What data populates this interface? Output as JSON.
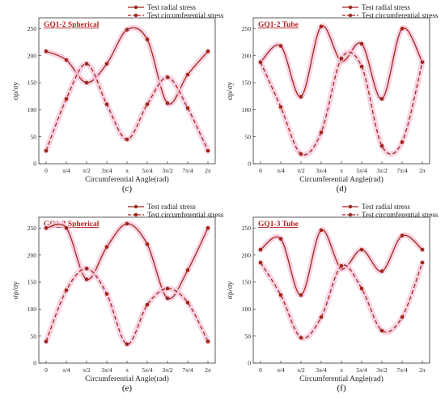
{
  "colors": {
    "series": "#a0261b",
    "halo": "#f6c9dd"
  },
  "chart_data": [
    {
      "panel": "c",
      "type": "line",
      "title": "GQ1-2 Spherical",
      "xlabel": "Circumferential Angle(rad)",
      "ylabel": "σρ/σy",
      "categories": [
        "0",
        "π/4",
        "π/2",
        "3π/4",
        "π",
        "5π/4",
        "3π/2",
        "7π/4",
        "2π"
      ],
      "ylim": [
        0,
        270
      ],
      "yticks": [
        0,
        50,
        100,
        150,
        200,
        250
      ],
      "legend_position": "top-right",
      "series": [
        {
          "name": "Test radial stress",
          "style": "solid",
          "values": [
            208,
            192,
            150,
            185,
            248,
            230,
            112,
            165,
            208
          ]
        },
        {
          "name": "Test circumferential stress",
          "style": "dashed",
          "values": [
            24,
            120,
            185,
            110,
            45,
            110,
            160,
            103,
            24
          ]
        }
      ]
    },
    {
      "panel": "d",
      "type": "line",
      "title": "GQ1-2 Tube",
      "xlabel": "Circumferential Angle(rad)",
      "ylabel": "σρ/σy",
      "categories": [
        "0",
        "π/4",
        "π/2",
        "3π/4",
        "π",
        "5π/4",
        "3π/2",
        "7π/4",
        "2π"
      ],
      "ylim": [
        0,
        270
      ],
      "yticks": [
        0,
        50,
        100,
        150,
        200,
        250
      ],
      "legend_position": "top-right",
      "series": [
        {
          "name": "Test radial stress",
          "style": "solid",
          "values": [
            188,
            218,
            124,
            254,
            190,
            222,
            120,
            250,
            188
          ]
        },
        {
          "name": "Test circumferential stress",
          "style": "dashed",
          "values": [
            188,
            105,
            18,
            58,
            195,
            180,
            33,
            40,
            188
          ]
        }
      ]
    },
    {
      "panel": "e",
      "type": "line",
      "title": "GQ1-3 Spherical",
      "xlabel": "Circumferential Angle(rad)",
      "ylabel": "σρ/σy",
      "categories": [
        "0",
        "π/4",
        "π/2",
        "3π/4",
        "π",
        "5π/4",
        "3π/2",
        "7π/4",
        "2π"
      ],
      "ylim": [
        0,
        270
      ],
      "yticks": [
        0,
        50,
        100,
        150,
        200,
        250
      ],
      "legend_position": "top-right",
      "series": [
        {
          "name": "Test radial stress",
          "style": "solid",
          "values": [
            250,
            250,
            155,
            215,
            258,
            220,
            120,
            172,
            250
          ]
        },
        {
          "name": "Test circumferential stress",
          "style": "dashed",
          "values": [
            40,
            135,
            175,
            128,
            35,
            108,
            138,
            112,
            40
          ]
        }
      ]
    },
    {
      "panel": "f",
      "type": "line",
      "title": "GQ1-3 Tube",
      "xlabel": "Circumferential Angle(rad)",
      "ylabel": "σρ/σy",
      "categories": [
        "0",
        "π/4",
        "π/2",
        "3π/4",
        "π",
        "5π/4",
        "3π/2",
        "7π/4",
        "2π"
      ],
      "ylim": [
        0,
        270
      ],
      "yticks": [
        0,
        50,
        100,
        150,
        200,
        250
      ],
      "legend_position": "top-right",
      "series": [
        {
          "name": "Test radial stress",
          "style": "solid",
          "values": [
            210,
            230,
            126,
            246,
            175,
            210,
            170,
            236,
            210
          ]
        },
        {
          "name": "Test circumferential stress",
          "style": "dashed",
          "values": [
            186,
            126,
            47,
            85,
            180,
            138,
            60,
            85,
            186
          ]
        }
      ]
    }
  ],
  "captions": [
    "(c)",
    "(d)",
    "(e)",
    "(f)"
  ]
}
